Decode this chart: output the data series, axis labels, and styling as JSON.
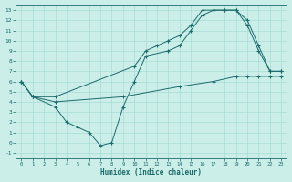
{
  "bg_color": "#cceee8",
  "line_color": "#1a6b6b",
  "xlabel": "Humidex (Indice chaleur)",
  "xlim": [
    -0.5,
    23.5
  ],
  "ylim": [
    -1.5,
    13.5
  ],
  "xticks": [
    0,
    1,
    2,
    3,
    4,
    5,
    6,
    7,
    8,
    9,
    10,
    11,
    12,
    13,
    14,
    15,
    16,
    17,
    18,
    19,
    20,
    21,
    22,
    23
  ],
  "yticks": [
    -1,
    0,
    1,
    2,
    3,
    4,
    5,
    6,
    7,
    8,
    9,
    10,
    11,
    12,
    13
  ],
  "line1_x": [
    0,
    1,
    3,
    4,
    5,
    6,
    7,
    8,
    9,
    10,
    11,
    13,
    14,
    15,
    16,
    17,
    18,
    19,
    20,
    21,
    22,
    23
  ],
  "line1_y": [
    6,
    4.5,
    3.5,
    2.0,
    1.5,
    1.0,
    -0.3,
    0.0,
    3.5,
    6.0,
    8.5,
    9.0,
    9.5,
    11.0,
    12.5,
    13.0,
    13.0,
    13.0,
    11.5,
    9.0,
    7.0,
    7.0
  ],
  "line2_x": [
    0,
    1,
    3,
    10,
    11,
    12,
    13,
    14,
    15,
    16,
    17,
    18,
    19,
    20,
    21,
    22,
    23
  ],
  "line2_y": [
    6,
    4.5,
    4.5,
    7.5,
    9.0,
    9.5,
    10.0,
    10.5,
    11.5,
    13.0,
    13.0,
    13.0,
    13.0,
    12.0,
    9.5,
    7.0,
    7.0
  ],
  "line3_x": [
    0,
    1,
    3,
    9,
    14,
    17,
    19,
    20,
    21,
    22,
    23
  ],
  "line3_y": [
    6,
    4.5,
    4.0,
    4.5,
    5.5,
    6.0,
    6.5,
    6.5,
    6.5,
    6.5,
    6.5
  ]
}
